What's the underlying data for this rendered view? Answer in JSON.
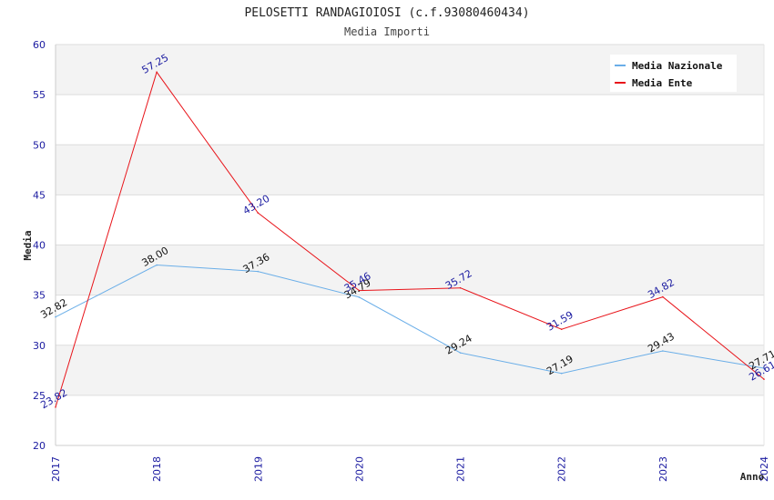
{
  "chart_data": {
    "type": "line",
    "title": "PELOSETTI RANDAGIOIOSI (c.f.93080460434)",
    "subtitle": "Media Importi",
    "xlabel": "Anno",
    "ylabel": "Media",
    "ylim": [
      20,
      60
    ],
    "yticks": [
      "20",
      "25",
      "30",
      "35",
      "40",
      "45",
      "50",
      "55",
      "60"
    ],
    "categories": [
      "2017",
      "2018",
      "2019",
      "2020",
      "2021",
      "2022",
      "2023",
      "2024"
    ],
    "legend_position": "top-right",
    "series": [
      {
        "name": "Media Nazionale",
        "color": "#6aaee8",
        "label_color": "#111111",
        "values": [
          32.82,
          38.0,
          37.36,
          34.79,
          29.24,
          27.19,
          29.43,
          27.71
        ],
        "labels": [
          "32.82",
          "38.00",
          "37.36",
          "34.79",
          "29.24",
          "27.19",
          "29.43",
          "27.71"
        ]
      },
      {
        "name": "Media Ente",
        "color": "#e8141a",
        "label_color": "#1a1aa0",
        "values": [
          23.82,
          57.25,
          43.2,
          35.46,
          35.72,
          31.59,
          34.82,
          26.61
        ],
        "labels": [
          "23.82",
          "57.25",
          "43.20",
          "35.46",
          "35.72",
          "31.59",
          "34.82",
          "26.61"
        ]
      }
    ]
  }
}
